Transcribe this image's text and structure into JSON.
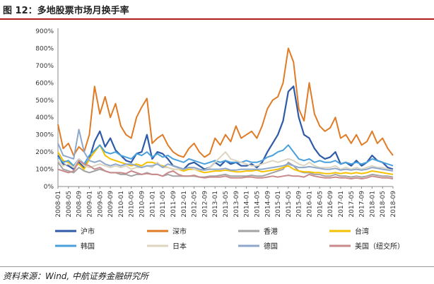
{
  "figure": {
    "title": "图 12：多地股票市场月换手率",
    "source": "资料来源：Wind, 中航证券金融研究所"
  },
  "chart_data": {
    "type": "line",
    "title": "",
    "xlabel": "",
    "ylabel": "",
    "x_ticks": [
      "2008-01",
      "2008-05",
      "2008-09",
      "2009-01",
      "2009-05",
      "2009-09",
      "2010-01",
      "2010-05",
      "2010-09",
      "2011-01",
      "2011-05",
      "2011-09",
      "2012-01",
      "2012-05",
      "2012-09",
      "2013-01",
      "2013-05",
      "2013-09",
      "2014-01",
      "2014-05",
      "2014-09",
      "2015-01",
      "2015-05",
      "2015-09",
      "2016-01",
      "2016-05",
      "2016-09",
      "2017-01",
      "2017-05",
      "2017-09",
      "2018-01",
      "2018-05",
      "2018-09"
    ],
    "y_ticks": [
      "0%",
      "100%",
      "200%",
      "300%",
      "400%",
      "500%",
      "600%",
      "700%",
      "800%",
      "900%"
    ],
    "ylim": [
      0,
      900
    ],
    "grid": false,
    "legend_position": "bottom",
    "x": [
      "2008-01",
      "2008-03",
      "2008-05",
      "2008-07",
      "2008-09",
      "2008-11",
      "2009-01",
      "2009-03",
      "2009-05",
      "2009-07",
      "2009-09",
      "2009-11",
      "2010-01",
      "2010-03",
      "2010-05",
      "2010-07",
      "2010-09",
      "2010-11",
      "2011-01",
      "2011-03",
      "2011-05",
      "2011-07",
      "2011-09",
      "2011-11",
      "2012-01",
      "2012-03",
      "2012-05",
      "2012-07",
      "2012-09",
      "2012-11",
      "2013-01",
      "2013-03",
      "2013-05",
      "2013-07",
      "2013-09",
      "2013-11",
      "2014-01",
      "2014-03",
      "2014-05",
      "2014-07",
      "2014-09",
      "2014-11",
      "2015-01",
      "2015-03",
      "2015-05",
      "2015-07",
      "2015-09",
      "2015-11",
      "2016-01",
      "2016-03",
      "2016-05",
      "2016-07",
      "2016-09",
      "2016-11",
      "2017-01",
      "2017-03",
      "2017-05",
      "2017-07",
      "2017-09",
      "2017-11",
      "2018-01",
      "2018-03",
      "2018-05",
      "2018-07",
      "2018-09"
    ],
    "series": [
      {
        "name": "沪市",
        "color": "#2e5aa8",
        "width": 2.2,
        "values": [
          180,
          130,
          120,
          100,
          140,
          110,
          160,
          260,
          320,
          230,
          280,
          210,
          180,
          150,
          140,
          190,
          200,
          300,
          160,
          200,
          190,
          160,
          120,
          110,
          100,
          130,
          140,
          120,
          100,
          110,
          140,
          120,
          150,
          130,
          140,
          120,
          120,
          130,
          110,
          140,
          200,
          250,
          300,
          380,
          550,
          580,
          400,
          300,
          280,
          220,
          180,
          160,
          170,
          200,
          130,
          140,
          120,
          150,
          120,
          140,
          180,
          150,
          140,
          110,
          100
        ]
      },
      {
        "name": "深市",
        "color": "#e07b26",
        "width": 2,
        "values": [
          360,
          220,
          250,
          180,
          230,
          200,
          300,
          580,
          420,
          520,
          400,
          480,
          350,
          300,
          280,
          400,
          460,
          510,
          250,
          280,
          300,
          240,
          200,
          180,
          170,
          220,
          250,
          200,
          170,
          190,
          280,
          240,
          300,
          260,
          350,
          280,
          300,
          320,
          280,
          350,
          450,
          500,
          520,
          600,
          800,
          720,
          450,
          380,
          600,
          420,
          350,
          320,
          340,
          400,
          280,
          300,
          250,
          300,
          240,
          260,
          320,
          250,
          280,
          220,
          180
        ]
      },
      {
        "name": "香港",
        "color": "#a3a3a3",
        "width": 2,
        "values": [
          140,
          100,
          90,
          80,
          110,
          90,
          80,
          90,
          100,
          90,
          80,
          80,
          70,
          70,
          60,
          70,
          70,
          80,
          70,
          70,
          60,
          70,
          60,
          60,
          60,
          60,
          60,
          55,
          55,
          60,
          60,
          65,
          70,
          60,
          60,
          60,
          60,
          65,
          60,
          60,
          70,
          80,
          90,
          100,
          140,
          120,
          90,
          80,
          80,
          70,
          70,
          60,
          60,
          70,
          60,
          60,
          55,
          60,
          55,
          60,
          70,
          65,
          60,
          60,
          55
        ]
      },
      {
        "name": "台湾",
        "color": "#f5c000",
        "width": 2,
        "values": [
          200,
          150,
          140,
          120,
          130,
          100,
          160,
          200,
          240,
          180,
          160,
          150,
          140,
          130,
          120,
          130,
          120,
          140,
          140,
          130,
          120,
          110,
          100,
          100,
          90,
          100,
          100,
          90,
          80,
          85,
          90,
          90,
          95,
          90,
          85,
          85,
          90,
          90,
          95,
          85,
          90,
          95,
          100,
          110,
          120,
          100,
          90,
          85,
          85,
          80,
          80,
          75,
          75,
          80,
          75,
          80,
          75,
          80,
          75,
          80,
          90,
          85,
          80,
          75,
          70
        ]
      },
      {
        "name": "韩国",
        "color": "#4aa0dc",
        "width": 2,
        "values": [
          170,
          140,
          150,
          120,
          160,
          130,
          180,
          210,
          240,
          200,
          190,
          200,
          180,
          170,
          160,
          190,
          180,
          200,
          170,
          190,
          170,
          180,
          160,
          150,
          140,
          160,
          150,
          140,
          130,
          140,
          150,
          140,
          150,
          140,
          140,
          140,
          150,
          140,
          140,
          150,
          170,
          180,
          200,
          210,
          240,
          200,
          160,
          150,
          160,
          140,
          150,
          140,
          140,
          150,
          130,
          140,
          130,
          140,
          130,
          140,
          160,
          150,
          140,
          130,
          120
        ]
      },
      {
        "name": "日本",
        "color": "#ddd5c0",
        "width": 2,
        "values": [
          150,
          120,
          130,
          110,
          160,
          120,
          110,
          120,
          130,
          120,
          110,
          120,
          110,
          120,
          100,
          110,
          110,
          120,
          110,
          140,
          110,
          110,
          100,
          100,
          100,
          110,
          100,
          95,
          95,
          110,
          140,
          170,
          200,
          160,
          150,
          140,
          130,
          120,
          120,
          130,
          140,
          150,
          140,
          150,
          160,
          150,
          130,
          120,
          140,
          120,
          110,
          110,
          110,
          120,
          100,
          110,
          100,
          110,
          100,
          110,
          120,
          110,
          110,
          100,
          95
        ]
      },
      {
        "name": "德国",
        "color": "#8ea8cc",
        "width": 2,
        "values": [
          250,
          180,
          170,
          160,
          330,
          200,
          150,
          140,
          150,
          130,
          120,
          130,
          120,
          130,
          130,
          120,
          110,
          120,
          120,
          130,
          110,
          130,
          120,
          110,
          100,
          110,
          110,
          100,
          95,
          100,
          100,
          100,
          105,
          95,
          95,
          100,
          100,
          100,
          100,
          100,
          105,
          110,
          115,
          120,
          130,
          120,
          110,
          110,
          115,
          110,
          105,
          100,
          100,
          105,
          95,
          100,
          95,
          100,
          95,
          100,
          110,
          105,
          100,
          95,
          90
        ]
      },
      {
        "name": "美国（纽交所）",
        "color": "#c98a8c",
        "width": 2,
        "values": [
          100,
          90,
          80,
          90,
          150,
          130,
          120,
          100,
          110,
          90,
          80,
          80,
          80,
          75,
          90,
          80,
          70,
          75,
          70,
          70,
          60,
          80,
          90,
          70,
          60,
          60,
          65,
          55,
          50,
          55,
          55,
          55,
          60,
          50,
          50,
          50,
          55,
          55,
          50,
          50,
          55,
          60,
          55,
          60,
          65,
          60,
          60,
          55,
          70,
          60,
          55,
          50,
          50,
          55,
          50,
          50,
          45,
          50,
          45,
          50,
          60,
          55,
          50,
          50,
          45
        ]
      }
    ]
  }
}
